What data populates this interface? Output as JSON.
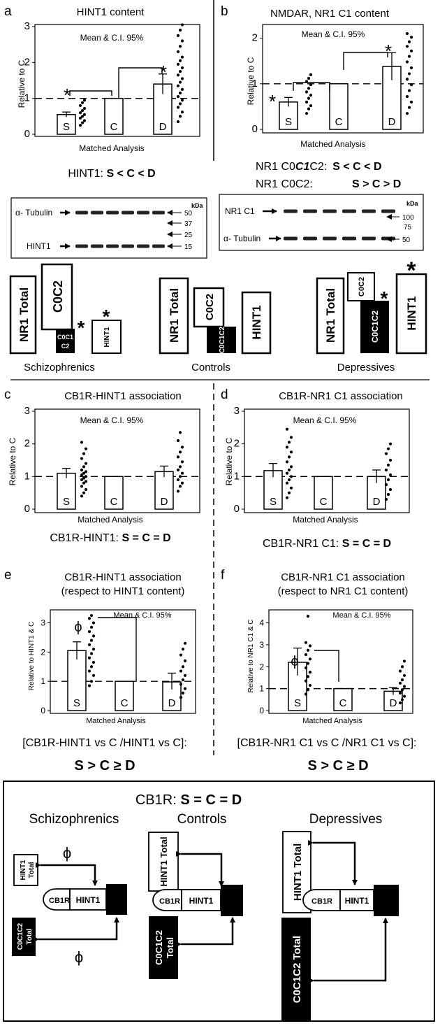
{
  "panels": {
    "a": {
      "letter": "a",
      "title": "HINT1 content",
      "legend": "Mean & C.I. 95%",
      "ylabel": "Relative to C",
      "xlabel": "Matched Analysis",
      "yticks": [
        "0",
        "1",
        "2",
        "3"
      ],
      "ylim": [
        0,
        3
      ],
      "groups": [
        "S",
        "C",
        "D"
      ],
      "summary_prefix": "HINT1: ",
      "summary_bold": "S < C < D"
    },
    "b": {
      "letter": "b",
      "title": "NMDAR, NR1 C1 content",
      "legend": "Mean & C.I. 95%",
      "ylabel": "Relative to C",
      "xlabel": "Matched Analysis",
      "yticks": [
        "0",
        "1",
        "2"
      ],
      "ylim": [
        0,
        2.3
      ],
      "groups": [
        "S",
        "C",
        "D"
      ],
      "summary1_label": "NR1 C0",
      "summary1_italic": "C1",
      "summary1_label_end": "C2:",
      "summary1_bold": "S < C < D",
      "summary2_label": "NR1 C0C2:",
      "summary2_bold": "S > C > D"
    },
    "c": {
      "letter": "c",
      "title": "CB1R-HINT1 association",
      "legend": "Mean & C.I. 95%",
      "ylabel": "Relative to C",
      "xlabel": "Matched Analysis",
      "yticks": [
        "0",
        "1",
        "2",
        "3"
      ],
      "ylim": [
        0,
        3
      ],
      "groups": [
        "S",
        "C",
        "D"
      ],
      "summary_prefix": "CB1R-HINT1: ",
      "summary_bold": "S = C = D"
    },
    "d": {
      "letter": "d",
      "title": "CB1R-NR1 C1 association",
      "legend": "Mean & C.I. 95%",
      "ylabel": "Relative to C",
      "xlabel": "Matched Analysis",
      "yticks": [
        "0",
        "1",
        "2",
        "3"
      ],
      "ylim": [
        0,
        3
      ],
      "groups": [
        "S",
        "C",
        "D"
      ],
      "summary_prefix": "CB1R-NR1 C1: ",
      "summary_bold": "S = C = D"
    },
    "e": {
      "letter": "e",
      "title1": "CB1R-HINT1 association",
      "title2": "(respect to HINT1 content)",
      "legend": "Mean & C.I. 95%",
      "ylabel": "Relative to HINT1 & C",
      "xlabel": "Matched Analysis",
      "yticks": [
        "0",
        "1",
        "2",
        "3"
      ],
      "ylim": [
        0,
        3.3
      ],
      "groups": [
        "S",
        "C",
        "D"
      ],
      "phi": "ϕ",
      "summary1": "[CB1R-HINT1 vs C /HINT1 vs C]:",
      "summary2": "S > C ≥ D"
    },
    "f": {
      "letter": "f",
      "title1": "CB1R-NR1 C1 association",
      "title2": "(respect to NR1 C1 content)",
      "legend": "Mean & C.I. 95%",
      "ylabel": "Relative to NR1 C1 & C",
      "xlabel": "Matched Analysis",
      "yticks": [
        "0",
        "1",
        "2",
        "3",
        "4"
      ],
      "ylim": [
        0,
        4.4
      ],
      "groups": [
        "S",
        "C",
        "D"
      ],
      "phi": "ϕ",
      "summary1": "[CB1R-NR1 C1 vs C /NR1 C1 vs C]:",
      "summary2": "S > C ≥ D"
    }
  },
  "blots": {
    "left": {
      "kda": "kDa",
      "band_top": "α- Tubulin",
      "band_bottom": "HINT1",
      "markers": [
        "50",
        "37",
        "25",
        "15"
      ]
    },
    "right": {
      "kda": "kDa",
      "band_top": "NR1 C1",
      "band_bottom": "α- Tubulin",
      "markers": [
        "100",
        "75",
        "50"
      ]
    }
  },
  "schema_mid": {
    "groups": [
      "Schizophrenics",
      "Controls",
      "Depressives"
    ],
    "nr1_total": "NR1 Total",
    "c0c2": "C0C2",
    "c0c1c2": "C0C1C2",
    "c0c1c2_split1": "C0C1",
    "c0c1c2_split2": "C2",
    "hint1": "HINT1",
    "star": "*"
  },
  "schema_bottom": {
    "cb1r_label": "CB1R: ",
    "cb1r_bold": "S = C = D",
    "groups": [
      "Schizophrenics",
      "Controls",
      "Depressives"
    ],
    "hint1_total": "HINT1 Total",
    "hint1_total_1": "HINT1",
    "hint1_total_2": "Total",
    "c0c1c2_total": "C0C1C2 Total",
    "c0c1c2_total_1": "C0C1C2",
    "c0c1c2_total_2": "Total",
    "cb1r": "CB1R",
    "hint1": "HINT1",
    "phi": "ϕ"
  },
  "chart_data": [
    {
      "type": "bar",
      "panel": "a",
      "title": "HINT1 content",
      "categories": [
        "S",
        "C",
        "D"
      ],
      "values": [
        0.55,
        1.0,
        1.4
      ],
      "ci_low": [
        0.48,
        1.0,
        1.12
      ],
      "ci_high": [
        0.62,
        1.0,
        1.68
      ],
      "reference_line": 1.0,
      "ylim": [
        0,
        3
      ],
      "ylabel": "Relative to C",
      "xlabel": "Matched Analysis",
      "individual_points": {
        "S": [
          0.25,
          0.32,
          0.38,
          0.45,
          0.5,
          0.55,
          0.6,
          0.66,
          0.72,
          0.8,
          0.88,
          0.95
        ],
        "D": [
          0.35,
          0.5,
          0.62,
          0.75,
          0.85,
          0.95,
          1.05,
          1.15,
          1.25,
          1.35,
          1.45,
          1.55,
          1.65,
          1.75,
          1.85,
          1.95,
          2.05,
          2.15,
          2.3,
          2.45,
          2.6,
          2.75,
          2.9,
          3.05
        ]
      },
      "significance": [
        "S",
        "D"
      ]
    },
    {
      "type": "bar",
      "panel": "b",
      "title": "NMDAR, NR1 C1 content",
      "categories": [
        "S",
        "C",
        "D"
      ],
      "values": [
        0.6,
        1.0,
        1.38
      ],
      "ci_low": [
        0.5,
        1.0,
        1.08
      ],
      "ci_high": [
        0.7,
        1.0,
        1.68
      ],
      "reference_line": 1.0,
      "ylim": [
        0,
        2.3
      ],
      "ylabel": "Relative to C",
      "xlabel": "Matched Analysis",
      "individual_points": {
        "S": [
          0.35,
          0.45,
          0.52,
          0.6,
          0.68,
          0.75,
          0.82,
          0.9,
          0.98,
          1.05,
          1.12,
          1.2
        ],
        "D": [
          0.35,
          0.48,
          0.6,
          0.72,
          0.85,
          0.98,
          1.1,
          1.22,
          1.35,
          1.48,
          1.6,
          1.72,
          1.82,
          1.92,
          2.02,
          2.1
        ]
      },
      "significance": [
        "S",
        "D"
      ]
    },
    {
      "type": "bar",
      "panel": "c",
      "title": "CB1R-HINT1 association",
      "categories": [
        "S",
        "C",
        "D"
      ],
      "values": [
        1.1,
        1.0,
        1.15
      ],
      "ci_low": [
        0.95,
        1.0,
        0.98
      ],
      "ci_high": [
        1.25,
        1.0,
        1.32
      ],
      "reference_line": 1.0,
      "ylim": [
        0,
        3
      ],
      "ylabel": "Relative to C",
      "xlabel": "Matched Analysis",
      "individual_points": {
        "S": [
          0.4,
          0.5,
          0.6,
          0.7,
          0.8,
          0.85,
          0.9,
          0.95,
          1.0,
          1.05,
          1.1,
          1.15,
          1.2,
          1.3,
          1.4,
          1.55,
          1.7,
          1.85,
          2.05
        ],
        "D": [
          0.55,
          0.7,
          0.8,
          0.9,
          1.0,
          1.1,
          1.2,
          1.3,
          1.45,
          1.6,
          1.75,
          1.9,
          2.1,
          2.35
        ]
      }
    },
    {
      "type": "bar",
      "panel": "d",
      "title": "CB1R-NR1 C1 association",
      "categories": [
        "S",
        "C",
        "D"
      ],
      "values": [
        1.18,
        1.0,
        1.0
      ],
      "ci_low": [
        0.98,
        1.0,
        0.8
      ],
      "ci_high": [
        1.4,
        1.0,
        1.2
      ],
      "reference_line": 1.0,
      "ylim": [
        0,
        3
      ],
      "ylabel": "Relative to C",
      "xlabel": "Matched Analysis",
      "individual_points": {
        "S": [
          0.35,
          0.5,
          0.65,
          0.8,
          0.9,
          1.0,
          1.1,
          1.2,
          1.3,
          1.45,
          1.6,
          1.75,
          1.9,
          2.05,
          2.2,
          2.45
        ],
        "D": [
          0.3,
          0.45,
          0.6,
          0.75,
          0.9,
          1.05,
          1.2,
          1.35,
          1.5,
          1.7,
          1.85,
          2.0
        ]
      }
    },
    {
      "type": "bar",
      "panel": "e",
      "title": "CB1R-HINT1 association (respect to HINT1 content)",
      "categories": [
        "S",
        "C",
        "D"
      ],
      "values": [
        2.05,
        1.0,
        0.98
      ],
      "ci_low": [
        1.75,
        1.0,
        0.72
      ],
      "ci_high": [
        2.35,
        1.0,
        1.28
      ],
      "reference_line": 1.0,
      "ylim": [
        0,
        3.3
      ],
      "ylabel": "Relative to HINT1 & C",
      "xlabel": "Matched Analysis",
      "individual_points": {
        "S": [
          0.85,
          1.0,
          1.2,
          1.35,
          1.5,
          1.65,
          1.8,
          1.95,
          2.1,
          2.25,
          2.4,
          2.55,
          2.7,
          2.85,
          3.0,
          3.15,
          3.25
        ],
        "D": [
          0.45,
          0.6,
          0.75,
          0.9,
          1.05,
          1.2,
          1.35,
          1.5,
          1.7,
          1.9,
          2.1,
          2.3
        ]
      },
      "significance": [
        "S"
      ]
    },
    {
      "type": "bar",
      "panel": "f",
      "title": "CB1R-NR1 C1 association (respect to NR1 C1 content)",
      "categories": [
        "S",
        "C",
        "D"
      ],
      "values": [
        2.2,
        1.0,
        0.88
      ],
      "ci_low": [
        1.6,
        1.0,
        0.72
      ],
      "ci_high": [
        2.85,
        1.0,
        1.05
      ],
      "reference_line": 1.0,
      "ylim": [
        0,
        4.4
      ],
      "ylabel": "Relative to NR1 C1 & C",
      "xlabel": "Matched Analysis",
      "individual_points": {
        "S": [
          0.75,
          0.95,
          1.15,
          1.35,
          1.55,
          1.75,
          1.95,
          2.15,
          2.35,
          2.55,
          2.75,
          2.95,
          3.1,
          4.3
        ],
        "D": [
          0.35,
          0.5,
          0.65,
          0.8,
          0.95,
          1.1,
          1.25,
          1.4,
          1.6,
          1.8,
          2.0,
          2.25
        ]
      },
      "significance": [
        "S"
      ]
    }
  ]
}
